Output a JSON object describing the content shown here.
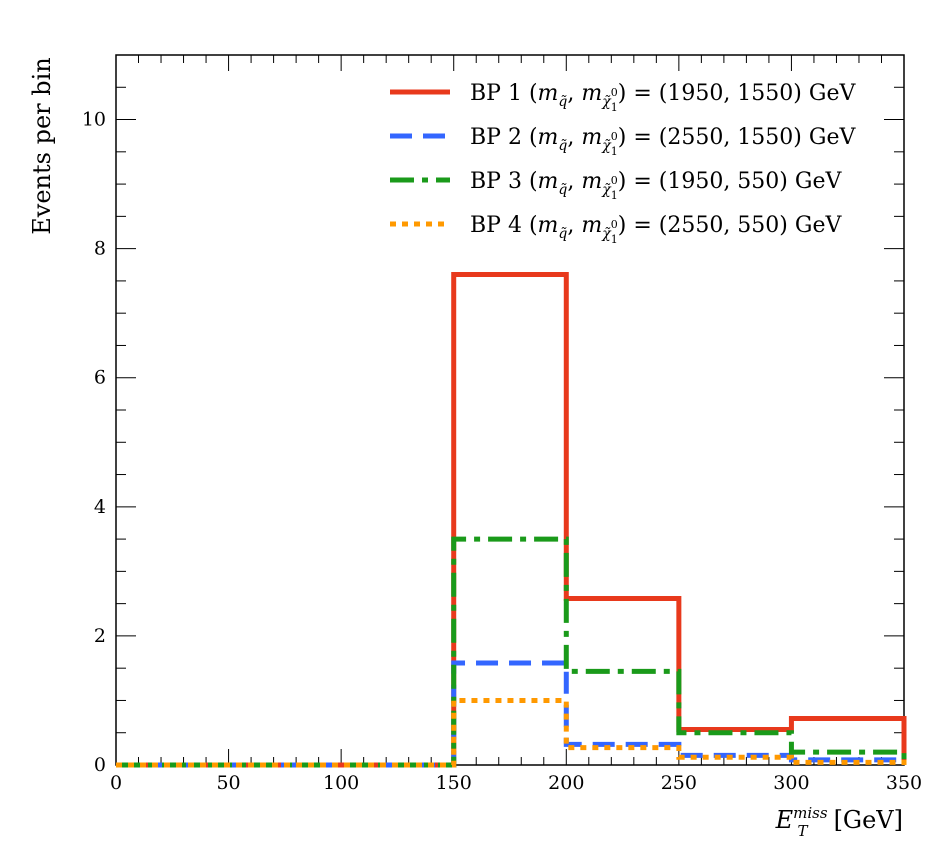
{
  "chart_data": {
    "type": "step",
    "xlabel_main": "E",
    "xlabel_sup": "miss",
    "xlabel_sub": "T",
    "xlabel_unit": "[GeV]",
    "ylabel": "Events per bin",
    "xlim": [
      0,
      350
    ],
    "ylim": [
      0,
      11
    ],
    "xticks": [
      0,
      50,
      100,
      150,
      200,
      250,
      300,
      350
    ],
    "yticks": [
      0,
      2,
      4,
      6,
      8,
      10
    ],
    "bin_edges": [
      0,
      50,
      100,
      150,
      200,
      250,
      300,
      350
    ],
    "series": [
      {
        "name": "BP 1",
        "legend_prefix": "BP 1 (",
        "legend_values": ") = (1950, 1550) GeV",
        "color": "#e8391c",
        "style": "solid",
        "values": [
          0,
          0,
          0,
          7.6,
          2.58,
          0.55,
          0.72
        ]
      },
      {
        "name": "BP 2",
        "legend_prefix": "BP 2 (",
        "legend_values": ") = (2550, 1550) GeV",
        "color": "#3366ff",
        "style": "dashed",
        "values": [
          0,
          0,
          0,
          1.58,
          0.32,
          0.15,
          0.08
        ]
      },
      {
        "name": "BP 3",
        "legend_prefix": "BP 3 (",
        "legend_values": ") = (1950, 550) GeV",
        "color": "#1a9a1a",
        "style": "dashdot",
        "values": [
          0,
          0,
          0,
          3.5,
          1.45,
          0.5,
          0.2
        ]
      },
      {
        "name": "BP 4",
        "legend_prefix": "BP 4 (",
        "legend_values": ") = (2550, 550) GeV",
        "color": "#ff9900",
        "style": "dotted",
        "values": [
          0,
          0,
          0,
          1.0,
          0.27,
          0.12,
          0.04
        ]
      }
    ],
    "legend_position": "top-right",
    "legend_masses": {
      "m": "m",
      "q": "q̃",
      "chi": "χ̃",
      "chi_sup": "0",
      "chi_sub": "1"
    }
  }
}
